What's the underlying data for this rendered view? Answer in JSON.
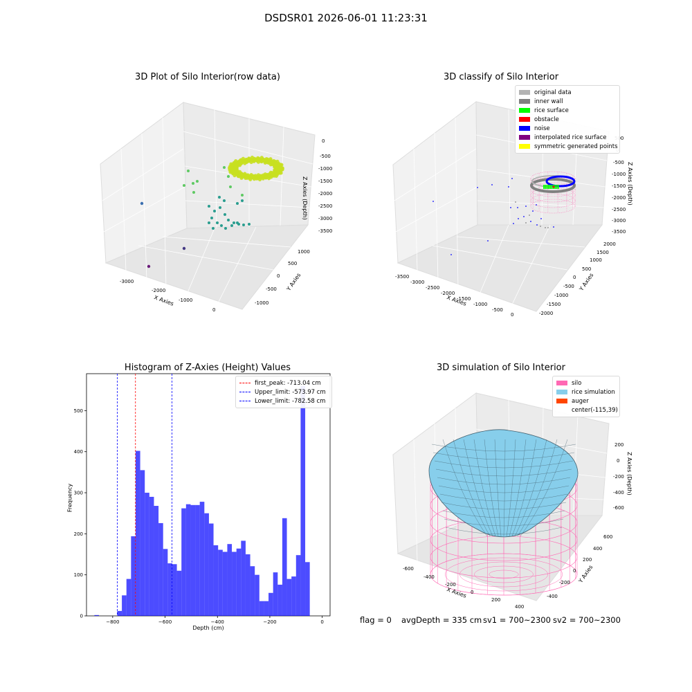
{
  "figure": {
    "suptitle": "DSDSR01 2026-06-01 11:23:31",
    "footer": {
      "flag": "flag = 0",
      "avg_depth": "avgDepth = 335 cm",
      "sv1": "sv1 = 700~2300",
      "sv2": "sv2 = 700~2300"
    }
  },
  "panels": {
    "raw": {
      "title": "3D Plot of Silo Interior(row data)",
      "xlabel": "X Axies",
      "ylabel": "Y Axies",
      "zlabel": "Z Axies (Depth)",
      "xticks": [
        "-3000",
        "-2000",
        "-1000",
        "0"
      ],
      "yticks": [
        "-1000",
        "-500",
        "0",
        "500",
        "1000"
      ],
      "zticks": [
        "0",
        "-500",
        "-1000",
        "-1500",
        "-2000",
        "-2500",
        "-3000",
        "-3500"
      ],
      "colors": {
        "high": "#c8e020",
        "mid": "#2a9d8f",
        "light": "#5ec962",
        "low": "#443983",
        "deep": "#6a1b7a"
      }
    },
    "classify": {
      "title": "3D classify of Silo Interior",
      "xlabel": "X Axies",
      "ylabel": "Y Axies",
      "zlabel": "Z Axies (Depth)",
      "xticks": [
        "-3500",
        "-3000",
        "-2500",
        "-2000",
        "-1500",
        "-1000",
        "-500",
        "0"
      ],
      "yticks": [
        "-2000",
        "-1500",
        "-1000",
        "-500",
        "0",
        "500",
        "1000",
        "1500",
        "2000"
      ],
      "zticks": [
        "500",
        "0",
        "-500",
        "-1000",
        "-1500",
        "-2000",
        "-2500",
        "-3000",
        "-3500"
      ],
      "legend": [
        {
          "label": "original data",
          "color": "#b3b3b3"
        },
        {
          "label": "inner wall",
          "color": "#808080"
        },
        {
          "label": "rice surface",
          "color": "#00ff00"
        },
        {
          "label": "obstacle",
          "color": "#ff0000"
        },
        {
          "label": "noise",
          "color": "#0000ff"
        },
        {
          "label": "interpolated rice surface",
          "color": "#800080"
        },
        {
          "label": "symmetric generated points",
          "color": "#ffff00"
        }
      ]
    },
    "simulation": {
      "title": "3D simulation of Silo Interior",
      "xlabel": "X Axies",
      "ylabel": "Y Axies",
      "zlabel": "Z Axies (Depth)",
      "xticks": [
        "-600",
        "-400",
        "-200",
        "0",
        "200",
        "400"
      ],
      "yticks": [
        "-400",
        "-200",
        "0",
        "200",
        "400",
        "600"
      ],
      "zticks": [
        "200",
        "0",
        "-200",
        "-400",
        "-600"
      ],
      "legend": [
        {
          "label": "silo",
          "color": "#ff69b4"
        },
        {
          "label": "rice simulation",
          "color": "#87ceeb"
        },
        {
          "label": "auger",
          "color": "#ff4500"
        },
        {
          "label": "center(-115,39)",
          "color": ""
        }
      ],
      "colors": {
        "surface": "#87ceeb",
        "edge": "#44606e",
        "silo": "#ff69b4"
      }
    }
  },
  "chart_data": {
    "type": "bar",
    "title": "Histogram of Z-Axies (Height) Values",
    "xlabel": "Depth (cm)",
    "ylabel": "Frequency",
    "xlim": [
      -900,
      30
    ],
    "ylim": [
      0,
      590
    ],
    "xticks": [
      -800,
      -600,
      -400,
      -200,
      0
    ],
    "yticks": [
      0,
      100,
      200,
      300,
      400,
      500
    ],
    "bin_start": -870,
    "bin_width": 17.5,
    "bar_color": "#0000ff",
    "values": [
      2,
      0,
      0,
      0,
      0,
      12,
      50,
      90,
      194,
      402,
      355,
      300,
      290,
      268,
      226,
      163,
      128,
      126,
      110,
      262,
      272,
      270,
      270,
      278,
      250,
      225,
      172,
      161,
      156,
      175,
      156,
      164,
      183,
      150,
      121,
      100,
      36,
      36,
      56,
      106,
      76,
      238,
      90,
      96,
      148,
      560,
      131
    ],
    "vlines": [
      {
        "label": "first_peak: -713.04 cm",
        "x": -713.04,
        "color": "#ff0000"
      },
      {
        "label": "Upper_limit: -573.97 cm",
        "x": -573.97,
        "color": "#0000ff"
      },
      {
        "label": "Lower_limit: -782.58 cm",
        "x": -782.58,
        "color": "#0000ff"
      }
    ]
  }
}
